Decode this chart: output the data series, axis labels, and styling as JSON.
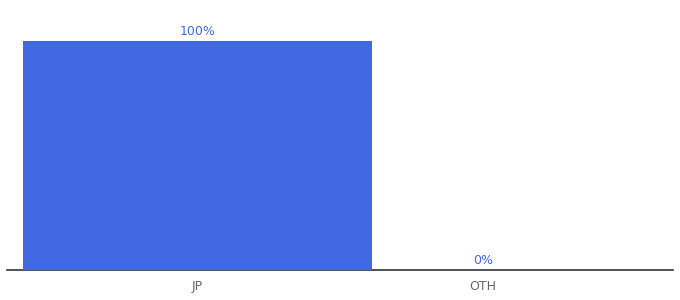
{
  "categories": [
    "JP",
    "OTH"
  ],
  "values": [
    100,
    0
  ],
  "bar_color": "#4169e1",
  "label_color": "#4169e1",
  "title": "",
  "ylim": [
    0,
    115
  ],
  "bar_width": 0.55,
  "x_positions": [
    0.3,
    0.75
  ],
  "xlim": [
    0.0,
    1.05
  ],
  "background_color": "#ffffff",
  "axis_label_fontsize": 9,
  "value_label_fontsize": 9,
  "tick_color": "#666666",
  "spine_color": "#333333"
}
